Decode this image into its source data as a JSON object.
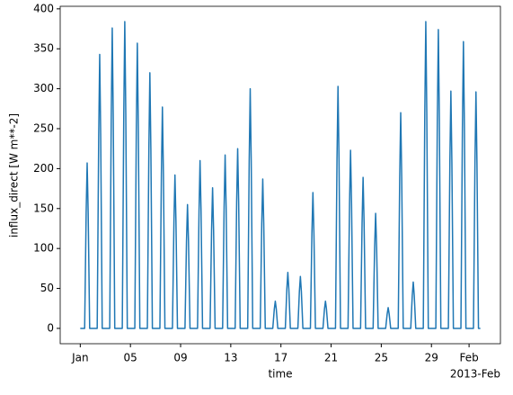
{
  "chart_data": {
    "type": "line",
    "xlabel": "time",
    "ylabel": "influx_direct [W m**-2]",
    "x_offset_label": "2013-Feb",
    "x": [
      1,
      1.35,
      1.47,
      1.55,
      1.63,
      1.75,
      2.35,
      2.47,
      2.55,
      2.63,
      2.75,
      3.35,
      3.47,
      3.55,
      3.63,
      3.75,
      4.35,
      4.47,
      4.55,
      4.63,
      4.75,
      5.35,
      5.47,
      5.55,
      5.63,
      5.75,
      6.35,
      6.47,
      6.55,
      6.63,
      6.75,
      7.35,
      7.47,
      7.55,
      7.63,
      7.75,
      8.35,
      8.47,
      8.55,
      8.63,
      8.75,
      9.35,
      9.47,
      9.55,
      9.63,
      9.75,
      10.35,
      10.47,
      10.55,
      10.63,
      10.75,
      11.35,
      11.47,
      11.55,
      11.63,
      11.75,
      12.35,
      12.47,
      12.55,
      12.63,
      12.75,
      13.35,
      13.47,
      13.55,
      13.63,
      13.75,
      14.35,
      14.47,
      14.55,
      14.63,
      14.75,
      15.35,
      15.47,
      15.55,
      15.63,
      15.75,
      16.35,
      16.47,
      16.55,
      16.63,
      16.75,
      17.35,
      17.47,
      17.55,
      17.63,
      17.75,
      18.35,
      18.47,
      18.55,
      18.63,
      18.75,
      19.35,
      19.47,
      19.55,
      19.63,
      19.75,
      20.35,
      20.47,
      20.55,
      20.63,
      20.75,
      21.35,
      21.47,
      21.55,
      21.63,
      21.75,
      22.35,
      22.47,
      22.55,
      22.63,
      22.75,
      23.35,
      23.47,
      23.55,
      23.63,
      23.75,
      24.35,
      24.47,
      24.55,
      24.63,
      24.75,
      25.35,
      25.47,
      25.55,
      25.63,
      25.75,
      26.35,
      26.47,
      26.55,
      26.63,
      26.75,
      27.35,
      27.47,
      27.55,
      27.63,
      27.75,
      28.35,
      28.47,
      28.55,
      28.63,
      28.75,
      29.35,
      29.47,
      29.55,
      29.63,
      29.75,
      30.35,
      30.47,
      30.55,
      30.63,
      30.75,
      31.35,
      31.47,
      31.55,
      31.63,
      31.75,
      32.35,
      32.47,
      32.55,
      32.63,
      32.75,
      32.9
    ],
    "series": [
      {
        "name": "influx_direct",
        "color": "#1f77b4",
        "values": [
          0,
          0,
          145,
          207,
          145,
          0,
          0,
          240,
          343,
          240,
          0,
          0,
          263,
          376,
          263,
          0,
          0,
          269,
          384,
          269,
          0,
          0,
          250,
          357,
          250,
          0,
          0,
          224,
          320,
          224,
          0,
          0,
          194,
          277,
          194,
          0,
          0,
          134,
          192,
          134,
          0,
          0,
          109,
          155,
          109,
          0,
          0,
          147,
          210,
          147,
          0,
          0,
          123,
          176,
          123,
          0,
          0,
          152,
          217,
          152,
          0,
          0,
          158,
          225,
          158,
          0,
          0,
          210,
          300,
          210,
          0,
          0,
          131,
          187,
          131,
          0,
          0,
          24,
          34,
          24,
          0,
          0,
          49,
          70,
          49,
          0,
          0,
          46,
          65,
          46,
          0,
          0,
          119,
          170,
          119,
          0,
          0,
          24,
          34,
          24,
          0,
          0,
          212,
          303,
          212,
          0,
          0,
          156,
          223,
          156,
          0,
          0,
          132,
          189,
          132,
          0,
          0,
          101,
          144,
          101,
          0,
          0,
          18,
          26,
          18,
          0,
          0,
          189,
          270,
          189,
          0,
          0,
          41,
          58,
          41,
          0,
          0,
          269,
          384,
          269,
          0,
          0,
          262,
          374,
          262,
          0,
          0,
          208,
          297,
          208,
          0,
          0,
          251,
          359,
          251,
          0,
          0,
          207,
          296,
          207,
          0,
          0
        ]
      }
    ],
    "xlim": [
      -0.6,
      34.5
    ],
    "xticks": [
      {
        "value": 1,
        "label": "Jan"
      },
      {
        "value": 5,
        "label": "05"
      },
      {
        "value": 9,
        "label": "09"
      },
      {
        "value": 13,
        "label": "13"
      },
      {
        "value": 17,
        "label": "17"
      },
      {
        "value": 21,
        "label": "21"
      },
      {
        "value": 25,
        "label": "25"
      },
      {
        "value": 29,
        "label": "29"
      },
      {
        "value": 32,
        "label": "Feb"
      }
    ],
    "ylim": [
      -19.2,
      403.2
    ],
    "yticks": [
      0,
      50,
      100,
      150,
      200,
      250,
      300,
      350,
      400
    ]
  }
}
